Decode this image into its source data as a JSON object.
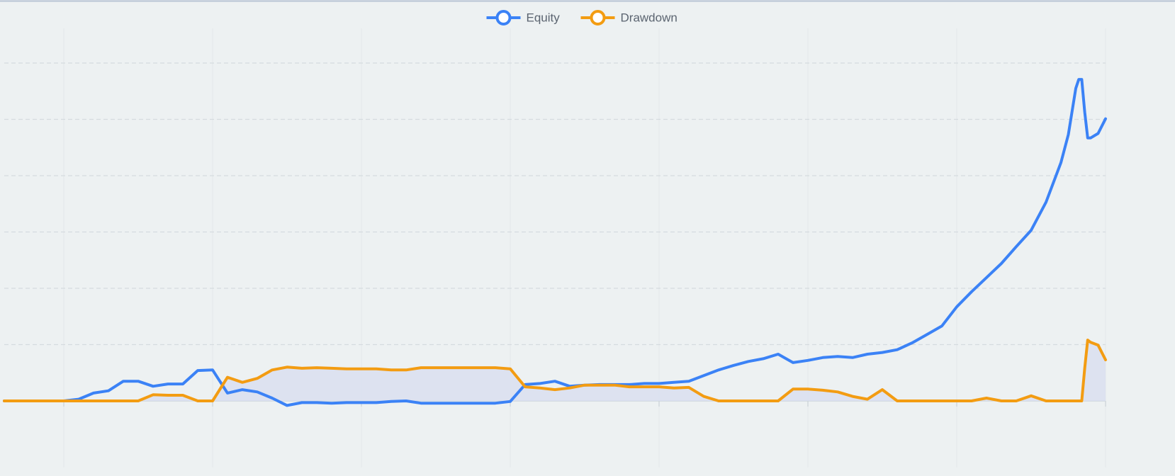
{
  "chart_data": {
    "type": "line",
    "x": [
      0.6,
      0.7,
      0.8,
      0.9,
      1.0,
      1.1,
      1.2,
      1.3,
      1.4,
      1.5,
      1.6,
      1.7,
      1.8,
      1.9,
      2.0,
      2.1,
      2.2,
      2.3,
      2.4,
      2.5,
      2.6,
      2.7,
      2.8,
      2.9,
      3.0,
      3.1,
      3.2,
      3.3,
      3.4,
      3.5,
      3.6,
      3.7,
      3.8,
      3.9,
      4.0,
      4.1,
      4.2,
      4.3,
      4.4,
      4.5,
      4.6,
      4.7,
      4.8,
      4.9,
      5.0,
      5.1,
      5.2,
      5.3,
      5.4,
      5.5,
      5.6,
      5.7,
      5.8,
      5.9,
      6.0,
      6.1,
      6.2,
      6.3,
      6.4,
      6.5,
      6.6,
      6.7,
      6.8,
      6.9,
      7.0,
      7.1,
      7.2,
      7.3,
      7.4,
      7.5,
      7.6,
      7.7,
      7.75,
      7.8,
      7.82,
      7.84,
      7.86,
      7.88,
      7.9,
      7.95,
      8.0
    ],
    "series": [
      {
        "name": "Equity",
        "color": "#3b82f6",
        "values": [
          0,
          0,
          0,
          0,
          0,
          0.03,
          0.14,
          0.18,
          0.35,
          0.35,
          0.26,
          0.3,
          0.3,
          0.54,
          0.55,
          0.14,
          0.2,
          0.16,
          0.05,
          -0.08,
          -0.03,
          -0.03,
          -0.04,
          -0.03,
          -0.03,
          -0.03,
          -0.01,
          0,
          -0.04,
          -0.04,
          -0.04,
          -0.04,
          -0.04,
          -0.04,
          -0.01,
          0.29,
          0.31,
          0.35,
          0.26,
          0.28,
          0.29,
          0.29,
          0.29,
          0.31,
          0.31,
          0.33,
          0.35,
          0.45,
          0.55,
          0.63,
          0.7,
          0.75,
          0.83,
          0.68,
          0.72,
          0.77,
          0.79,
          0.77,
          0.83,
          0.86,
          0.91,
          1.03,
          1.18,
          1.33,
          1.67,
          1.94,
          2.19,
          2.44,
          2.74,
          3.03,
          3.53,
          4.23,
          4.73,
          5.55,
          5.71,
          5.71,
          5.13,
          4.67,
          4.67,
          4.75,
          5.01
        ]
      },
      {
        "name": "Drawdown",
        "color": "#f39c12",
        "fill": "#d9dff0",
        "values": [
          0,
          0,
          0,
          0,
          0,
          0,
          0,
          0,
          0,
          0,
          0.11,
          0.1,
          0.1,
          0,
          0,
          0.42,
          0.33,
          0.4,
          0.55,
          0.6,
          0.58,
          0.59,
          0.58,
          0.57,
          0.57,
          0.57,
          0.55,
          0.55,
          0.59,
          0.59,
          0.59,
          0.59,
          0.59,
          0.59,
          0.57,
          0.25,
          0.23,
          0.2,
          0.23,
          0.28,
          0.28,
          0.28,
          0.25,
          0.25,
          0.25,
          0.23,
          0.24,
          0.08,
          0,
          0,
          0,
          0,
          0,
          0.21,
          0.21,
          0.19,
          0.16,
          0.08,
          0.03,
          0.2,
          0,
          0,
          0,
          0,
          0,
          0,
          0.05,
          0,
          0,
          0.09,
          0,
          0,
          0,
          0,
          0,
          0,
          0.58,
          1.08,
          1.04,
          0.99,
          0.73
        ]
      }
    ],
    "xlim": [
      0.6,
      8.0
    ],
    "xticks": [
      1,
      2,
      3,
      4,
      5,
      6,
      7,
      8
    ],
    "ylim": [
      -0.4,
      6.5
    ],
    "yticks": [
      0,
      1,
      2,
      3,
      4,
      5,
      6
    ],
    "grid": true,
    "legend": "top"
  }
}
